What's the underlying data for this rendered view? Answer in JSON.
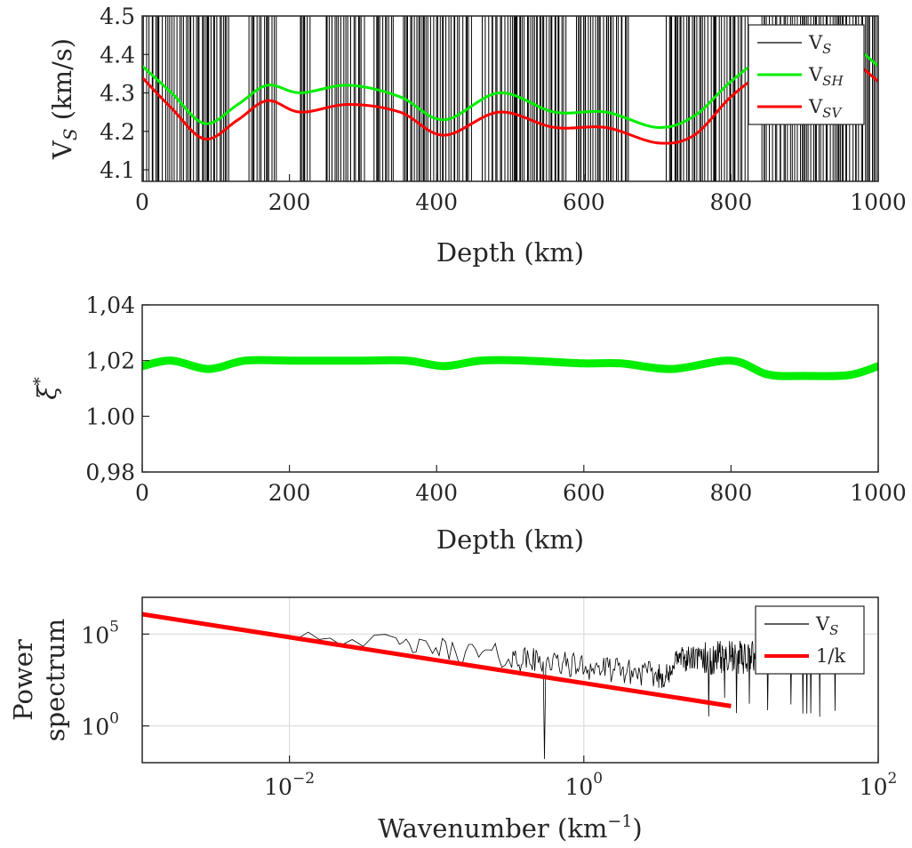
{
  "chart_data": [
    {
      "type": "line",
      "xlabel": "Depth (km)",
      "ylabel": {
        "main": "V",
        "sub": "S",
        "rest": " (km/s)"
      },
      "xlim": [
        0,
        1000
      ],
      "ylim": [
        4.07,
        4.5
      ],
      "xticks": [
        "0",
        "200",
        "400",
        "600",
        "800",
        "1000"
      ],
      "yticks": [
        "4.1",
        "4.2",
        "4.3",
        "4.4",
        "4.5"
      ],
      "legend_position": "top-right",
      "series": [
        {
          "name": {
            "main": "V",
            "sub": "S"
          },
          "color": "#000000",
          "style": "square-wave, switching between 4.07 and 4.5 km/s"
        },
        {
          "name": {
            "main": "V",
            "sub": "SH"
          },
          "color": "#00ee00",
          "x": [
            0,
            40,
            85,
            130,
            170,
            215,
            280,
            350,
            410,
            485,
            560,
            630,
            700,
            750,
            800,
            850,
            900,
            950,
            1000
          ],
          "y": [
            4.37,
            4.3,
            4.22,
            4.27,
            4.32,
            4.3,
            4.32,
            4.29,
            4.23,
            4.3,
            4.25,
            4.25,
            4.21,
            4.24,
            4.33,
            4.4,
            4.43,
            4.44,
            4.37
          ]
        },
        {
          "name": {
            "main": "V",
            "sub": "SV"
          },
          "color": "#ff0000",
          "x": [
            0,
            40,
            85,
            130,
            170,
            215,
            280,
            350,
            410,
            485,
            560,
            630,
            700,
            750,
            800,
            850,
            900,
            950,
            1000
          ],
          "y": [
            4.34,
            4.26,
            4.18,
            4.23,
            4.28,
            4.25,
            4.27,
            4.25,
            4.19,
            4.25,
            4.21,
            4.21,
            4.17,
            4.19,
            4.29,
            4.36,
            4.39,
            4.4,
            4.33
          ]
        }
      ]
    },
    {
      "type": "line",
      "xlabel": "Depth (km)",
      "ylabel": {
        "main": "ξ",
        "sup": "*"
      },
      "xlim": [
        0,
        1000
      ],
      "ylim": [
        0.98,
        1.04
      ],
      "xticks": [
        "0",
        "200",
        "400",
        "600",
        "800",
        "1000"
      ],
      "yticks": [
        "0,98",
        "1.00",
        "1,02",
        "1,04"
      ],
      "series": [
        {
          "color": "#00ee00",
          "x": [
            0,
            40,
            90,
            140,
            200,
            300,
            360,
            410,
            460,
            520,
            600,
            650,
            720,
            800,
            850,
            900,
            960,
            1000
          ],
          "y": [
            1.018,
            1.02,
            1.017,
            1.02,
            1.02,
            1.02,
            1.02,
            1.018,
            1.02,
            1.02,
            1.019,
            1.019,
            1.017,
            1.02,
            1.015,
            1.0145,
            1.0148,
            1.018
          ]
        }
      ]
    },
    {
      "type": "line",
      "xscale": "log",
      "yscale": "log",
      "xlabel": {
        "main": "Wavenumber (km",
        "sup": "−1",
        "rest": ")"
      },
      "ylabel": [
        "Power",
        "spectrum"
      ],
      "xlim": [
        0.001,
        100
      ],
      "ylim": [
        0.01,
        10000000
      ],
      "xticks": [
        {
          "base": "10",
          "exp": "−2"
        },
        {
          "base": "10",
          "exp": "0"
        },
        {
          "base": "10",
          "exp": "2"
        }
      ],
      "yticks": [
        {
          "base": "10",
          "exp": "0"
        },
        {
          "base": "10",
          "exp": "5"
        }
      ],
      "grid": true,
      "legend_position": "top-right",
      "series": [
        {
          "name": {
            "main": "V",
            "sub": "S"
          },
          "color": "#000000",
          "style": "noisy spectrum from ~0.01 to ~50 km⁻¹"
        },
        {
          "name": {
            "main": "1/k"
          },
          "color": "#ff0000",
          "x": [
            0.001,
            10
          ],
          "y": [
            1200000,
            12
          ]
        }
      ]
    }
  ]
}
